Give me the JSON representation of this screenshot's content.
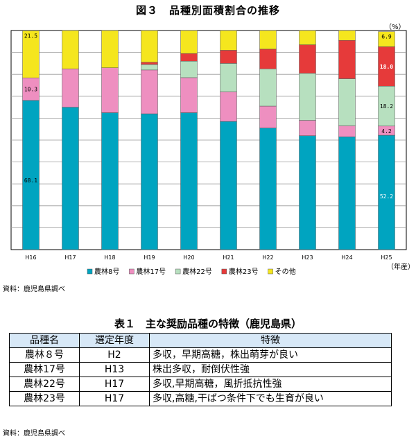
{
  "figure_title": "図３　品種別面積割合の推移",
  "unit": "（%）",
  "x_axis_unit": "（年産）",
  "source_chart": "資料：鹿児島県調べ",
  "chart_data": {
    "type": "bar",
    "stacked": true,
    "categories": [
      "H16",
      "H17",
      "H18",
      "H19",
      "H20",
      "H21",
      "H22",
      "H23",
      "H24",
      "H25"
    ],
    "series": [
      {
        "name": "農林8号",
        "color": "#00a4c0",
        "values": [
          68.1,
          65,
          62.5,
          62,
          62.5,
          58.5,
          55.5,
          52,
          51.5,
          52.2
        ]
      },
      {
        "name": "農林17号",
        "color": "#ee8fc0",
        "values": [
          10.3,
          17.5,
          20.5,
          20,
          16,
          13.5,
          10,
          7,
          5,
          4.2
        ]
      },
      {
        "name": "農林22号",
        "color": "#b7e0bf",
        "values": [
          0,
          0,
          0,
          2.5,
          7.5,
          13,
          17,
          21.5,
          21.5,
          18.2
        ]
      },
      {
        "name": "農林23号",
        "color": "#e63a3a",
        "values": [
          0,
          0,
          0,
          1,
          3.5,
          6,
          9,
          13,
          17.5,
          18.0
        ]
      },
      {
        "name": "その他",
        "color": "#f5e61e",
        "values": [
          21.5,
          17.5,
          17,
          14.5,
          10.5,
          9,
          8.5,
          6.5,
          4.5,
          6.9
        ]
      }
    ],
    "data_labels": [
      {
        "category": "H16",
        "series": "その他",
        "text": "21.5"
      },
      {
        "category": "H16",
        "series": "農林17号",
        "text": "10.3"
      },
      {
        "category": "H16",
        "series": "農林8号",
        "text": "68.1"
      },
      {
        "category": "H25",
        "series": "その他",
        "text": "6.9"
      },
      {
        "category": "H25",
        "series": "農林23号",
        "text": "18.0"
      },
      {
        "category": "H25",
        "series": "農林22号",
        "text": "18.2"
      },
      {
        "category": "H25",
        "series": "農林17号",
        "text": "4.2"
      },
      {
        "category": "H25",
        "series": "農林8号",
        "text": "52.2"
      }
    ],
    "ylim": [
      0,
      100
    ],
    "grid": true,
    "legend_position": "bottom"
  },
  "table": {
    "title": "表１　主な奨励品種の特徴（鹿児島県）",
    "headers": [
      "品種名",
      "選定年度",
      "特徴"
    ],
    "rows": [
      [
        "農林８号",
        "H2",
        "多収，早期高糖，株出萌芽が良い"
      ],
      [
        "農林17号",
        "H13",
        "株出多収，耐倒伏性強"
      ],
      [
        "農林22号",
        "H17",
        "多収,早期高糖，風折抵抗性強"
      ],
      [
        "農林23号",
        "H17",
        "多収,高糖,干ばつ条件下でも生育が良い"
      ]
    ],
    "source": "資料：鹿児島県調べ"
  }
}
